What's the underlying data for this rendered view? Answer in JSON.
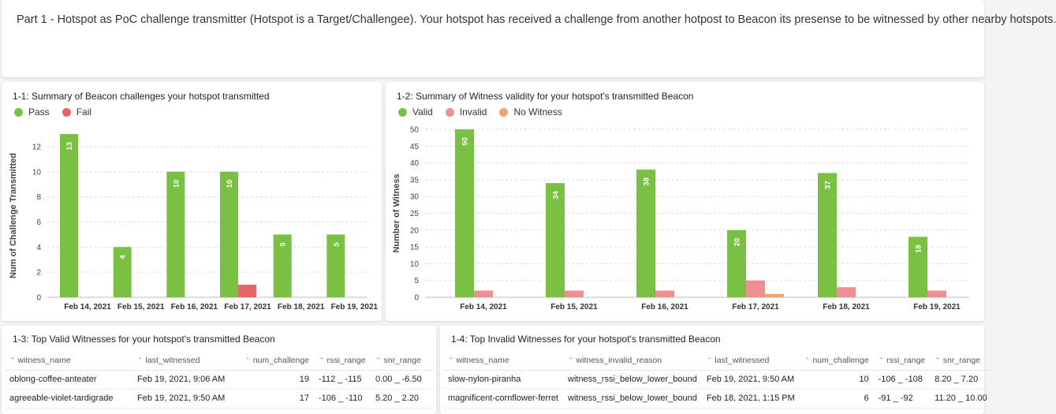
{
  "intro": {
    "text": "Part 1 - Hotspot as PoC challenge transmitter (Hotspot is a Target/Challengee). Your hotspot has received a challenge from another hotpost to Beacon its presense to be witnessed by other nearby hotspots."
  },
  "colors": {
    "pass": "#7ac143",
    "fail": "#e8636a",
    "valid": "#7ac143",
    "invalid": "#ef8f92",
    "no_witness": "#f0a46a",
    "grid": "#dddddd"
  },
  "chart_data": [
    {
      "type": "bar",
      "title": "1-1: Summary of Beacon challenges your hotspot transmitted",
      "ylabel": "Num of Challenge Transmitted",
      "xlabel": "",
      "ylim": [
        0,
        13
      ],
      "yticks": [
        0,
        2,
        4,
        6,
        8,
        10,
        12
      ],
      "categories": [
        "Feb 14, 2021",
        "Feb 15, 2021",
        "Feb 16, 2021",
        "Feb 17, 2021",
        "Feb 18, 2021",
        "Feb 19, 2021"
      ],
      "series": [
        {
          "name": "Pass",
          "values": [
            13,
            4,
            10,
            10,
            5,
            5
          ]
        },
        {
          "name": "Fail",
          "values": [
            0,
            0,
            0,
            1,
            0,
            0
          ]
        }
      ],
      "legend": [
        "Pass",
        "Fail"
      ],
      "legend_position": "top-left",
      "grid": true
    },
    {
      "type": "bar",
      "title": "1-2: Summary of Witness validity for your hotspot's transmitted Beacon",
      "ylabel": "Number of Witness",
      "xlabel": "",
      "ylim": [
        0,
        50
      ],
      "yticks": [
        0,
        5,
        10,
        15,
        20,
        25,
        30,
        35,
        40,
        45,
        50
      ],
      "categories": [
        "Feb 14, 2021",
        "Feb 15, 2021",
        "Feb 16, 2021",
        "Feb 17, 2021",
        "Feb 18, 2021",
        "Feb 19, 2021"
      ],
      "series": [
        {
          "name": "Valid",
          "values": [
            50,
            34,
            38,
            20,
            37,
            18
          ]
        },
        {
          "name": "Invalid",
          "values": [
            2,
            2,
            2,
            5,
            3,
            2
          ]
        },
        {
          "name": "No Witness",
          "values": [
            0,
            0,
            0,
            1,
            0,
            0
          ]
        }
      ],
      "legend": [
        "Valid",
        "Invalid",
        "No Witness"
      ],
      "legend_position": "top-left",
      "grid": true
    }
  ],
  "table1": {
    "title": "1-3: Top Valid Witnesses for your hotspot's transmitted Beacon",
    "columns": [
      "witness_name",
      "last_witnessed",
      "num_challenge",
      "rssi_range",
      "snr_range"
    ],
    "rows": [
      [
        "oblong-coffee-anteater",
        "Feb 19, 2021, 9:06 AM",
        "19",
        "-112 _ -115",
        "0.00 _ -6.50"
      ],
      [
        "agreeable-violet-tardigrade",
        "Feb 19, 2021, 9:50 AM",
        "17",
        "-106 _ -110",
        "5.20 _ 2.20"
      ]
    ]
  },
  "table2": {
    "title": "1-4: Top Invalid Witnesses for your hotspot's transmitted Beacon",
    "columns": [
      "witness_name",
      "witness_invalid_reason",
      "last_witnessed",
      "num_challenge",
      "rssi_range",
      "snr_range"
    ],
    "rows": [
      [
        "slow-nylon-piranha",
        "witness_rssi_below_lower_bound",
        "Feb 19, 2021, 9:50 AM",
        "10",
        "-106 _ -108",
        "8.20 _ 7.20"
      ],
      [
        "magnificent-cornflower-ferret",
        "witness_rssi_below_lower_bound",
        "Feb 18, 2021, 1:15 PM",
        "6",
        "-91 _ -92",
        "11.20 _ 10.00"
      ]
    ]
  },
  "icons": {
    "sort": "sort-arrow-icon"
  }
}
